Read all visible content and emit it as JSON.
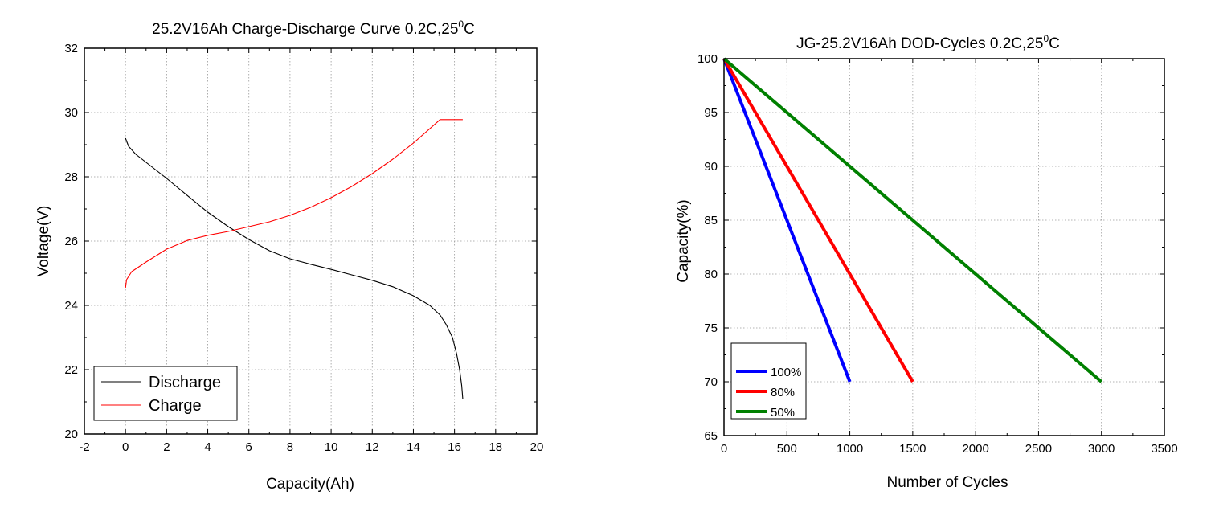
{
  "chart_data": [
    {
      "type": "line",
      "title": "25.2V16Ah Charge-Discharge Curve  0.2C,25",
      "title_sup": "0",
      "title_suffix": "C",
      "xlabel": "Capacity(Ah)",
      "ylabel": "Voltage(V)",
      "xlim": [
        -2,
        20
      ],
      "ylim": [
        20,
        32
      ],
      "xticks": [
        -2,
        0,
        2,
        4,
        6,
        8,
        10,
        12,
        14,
        16,
        18,
        20
      ],
      "yticks": [
        20,
        22,
        24,
        26,
        28,
        30,
        32
      ],
      "grid": true,
      "legend_position": "bottom-left",
      "series": [
        {
          "name": "Discharge",
          "color": "#000000",
          "x": [
            0,
            0.15,
            0.5,
            1,
            2,
            3,
            4,
            5,
            6,
            7,
            8,
            9,
            10,
            11,
            12,
            13,
            14,
            14.8,
            15.3,
            15.6,
            15.9,
            16.1,
            16.25,
            16.35,
            16.4
          ],
          "y": [
            29.2,
            28.95,
            28.7,
            28.45,
            27.95,
            27.42,
            26.9,
            26.45,
            26.05,
            25.7,
            25.45,
            25.28,
            25.12,
            24.95,
            24.78,
            24.58,
            24.3,
            24.0,
            23.7,
            23.4,
            23.0,
            22.5,
            22.0,
            21.5,
            21.1
          ]
        },
        {
          "name": "Charge",
          "color": "#ff0000",
          "x": [
            0,
            0.05,
            0.3,
            1,
            2,
            3,
            4,
            5,
            6,
            7,
            8,
            9,
            10,
            11,
            12,
            13,
            14,
            15.3,
            15.5,
            16,
            16.4
          ],
          "y": [
            24.55,
            24.8,
            25.05,
            25.35,
            25.75,
            26.02,
            26.18,
            26.3,
            26.45,
            26.6,
            26.8,
            27.05,
            27.35,
            27.7,
            28.1,
            28.55,
            29.05,
            29.78,
            29.78,
            29.78,
            29.78
          ]
        }
      ]
    },
    {
      "type": "line",
      "title": "JG-25.2V16Ah DOD-Cycles  0.2C,25",
      "title_sup": "0",
      "title_suffix": "C",
      "xlabel": "Number of Cycles",
      "ylabel": "Capacity(%)",
      "xlim": [
        0,
        3500
      ],
      "ylim": [
        65,
        100
      ],
      "xticks": [
        0,
        500,
        1000,
        1500,
        2000,
        2500,
        3000,
        3500
      ],
      "yticks": [
        65,
        70,
        75,
        80,
        85,
        90,
        95,
        100
      ],
      "grid": true,
      "legend_position": "bottom-left",
      "series": [
        {
          "name": "100%",
          "color": "#0000ff",
          "x": [
            0,
            1000
          ],
          "y": [
            100,
            70
          ]
        },
        {
          "name": "80%",
          "color": "#ff0000",
          "x": [
            0,
            1500
          ],
          "y": [
            100,
            70
          ]
        },
        {
          "name": "50%",
          "color": "#008000",
          "x": [
            0,
            3000
          ],
          "y": [
            100,
            70
          ]
        }
      ]
    }
  ]
}
